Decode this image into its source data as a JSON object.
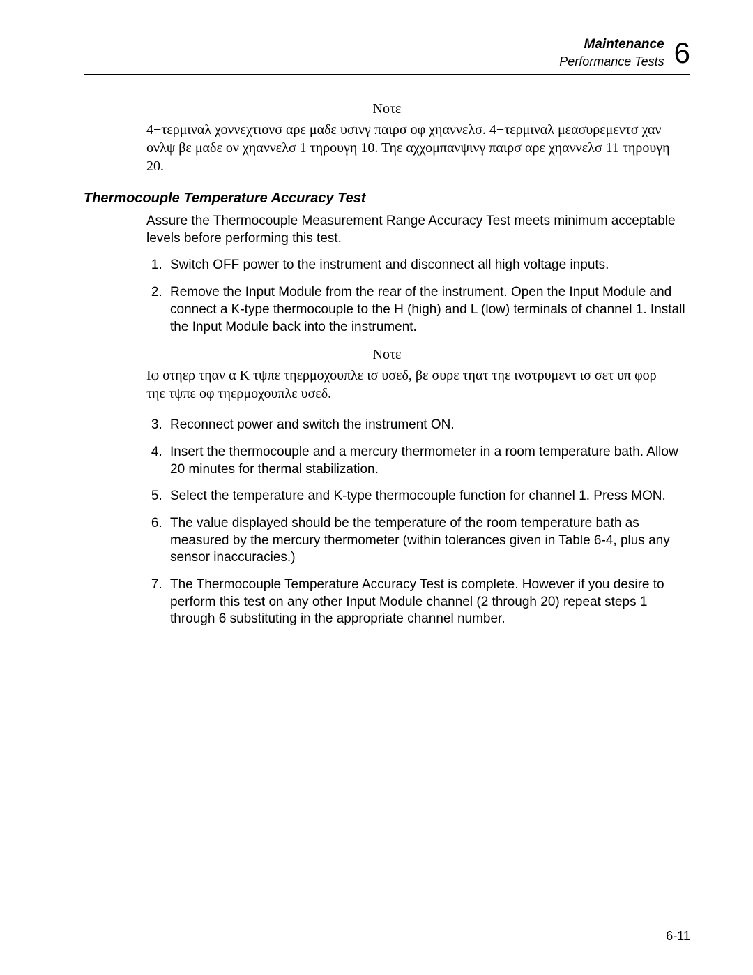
{
  "header": {
    "title": "Maintenance",
    "subtitle": "Performance Tests",
    "chapter": "6"
  },
  "note1": {
    "heading": "Νοτε",
    "body": "4−τερμιναλ χοννεχτιονσ αρε μαδε υσινγ παιρσ οφ χηαννελσ. 4−τερμιναλ μεασυρεμεντσ χαν ονλψ βε μαδε ον χηαννελσ 1 τηρουγη 10. Τηε αχχομπανψινγ παιρσ αρε χηαννελσ 11 τηρουγη 20."
  },
  "section": {
    "title": "Thermocouple Temperature Accuracy Test",
    "intro": "Assure the Thermocouple Measurement Range Accuracy Test meets minimum acceptable levels before performing this test.",
    "steps": {
      "s1": "Switch OFF power to the instrument and disconnect all high voltage inputs.",
      "s2": "Remove the Input Module from the rear of the instrument. Open the Input Module and connect a K-type thermocouple to the H (high) and L (low) terminals of channel 1. Install the Input Module back into the instrument.",
      "s3": "Reconnect power and switch the instrument ON.",
      "s4": "Insert the thermocouple and a mercury thermometer in a room temperature bath. Allow 20 minutes for thermal stabilization.",
      "s5": "Select the temperature and K-type thermocouple function for channel 1. Press MON.",
      "s6": "The value displayed should be the temperature of the room temperature bath as measured by the mercury thermometer (within tolerances given in Table 6-4, plus any sensor inaccuracies.)",
      "s7": "The Thermocouple Temperature Accuracy Test is complete. However if you desire to perform this test on any other Input Module channel (2 through 20) repeat steps 1 through 6 substituting in the appropriate channel number."
    }
  },
  "note2": {
    "heading": "Νοτε",
    "body": "Ιφ οτηερ τηαν α Κ τψπε τηερμοχουπλε ισ υσεδ, βε συρε τηατ τηε ινστρυμεντ ισ σετ υπ φορ τηε τψπε οφ τηερμοχουπλε υσεδ."
  },
  "pageNumber": "6-11"
}
